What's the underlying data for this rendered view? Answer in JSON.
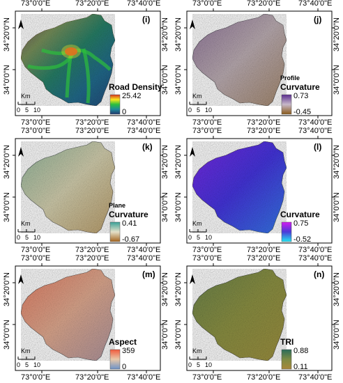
{
  "grid": {
    "top_lon": [
      "73°0'0\"E",
      "73°20'0\"E",
      "73°40'0\"E"
    ],
    "bottom_lon": [
      "73°0'0\"E",
      "73°20'0\"E",
      "73°40'0\"E"
    ],
    "lat_labels": [
      "34°20'0\"N",
      "34°0'0\"N"
    ]
  },
  "scale_bar": {
    "unit": "Km",
    "ticks": [
      "0",
      "5",
      "10"
    ]
  },
  "panels": [
    {
      "tag": "(i)",
      "title_small": "",
      "title": "Road Density",
      "max": "25.42",
      "min": "0",
      "colors": {
        "base": "#22507a",
        "ramp": [
          "#d7301f",
          "#f9e81c",
          "#2cbf3c",
          "#1e8a9a",
          "#22386e"
        ]
      }
    },
    {
      "tag": "(j)",
      "title_small": "Profile",
      "title": "Curvature",
      "max": "0.73",
      "min": "-0.45",
      "colors": {
        "base": "#a79a98",
        "ramp": [
          "#5a2d8f",
          "#c7b8c9",
          "#8a5a1a"
        ]
      }
    },
    {
      "tag": "(k)",
      "title_small": "Plane",
      "title": "Curvature",
      "max": "0.41",
      "min": "-0.67",
      "colors": {
        "base": "#b9b592",
        "ramp": [
          "#3aa198",
          "#e4e0c8",
          "#a4641e"
        ]
      }
    },
    {
      "tag": "(l)",
      "title_small": "",
      "title": "Curvature",
      "max": "0.75",
      "min": "-0.52",
      "colors": {
        "base": "#3d2fd1",
        "ramp": [
          "#d21cf0",
          "#4a3ad8",
          "#22e6f2"
        ]
      }
    },
    {
      "tag": "(m)",
      "title_small": "",
      "title": "Aspect",
      "max": "359",
      "min": "0",
      "colors": {
        "base": "#c98a76",
        "ramp": [
          "#f25a3c",
          "#e8c8a8",
          "#6d92c8"
        ]
      }
    },
    {
      "tag": "(n)",
      "title_small": "",
      "title": "TRI",
      "max": "0.88",
      "min": "0.11",
      "colors": {
        "base": "#8b8a3e",
        "ramp": [
          "#2a6c5a",
          "#7d8b44",
          "#a9883a"
        ]
      }
    }
  ]
}
